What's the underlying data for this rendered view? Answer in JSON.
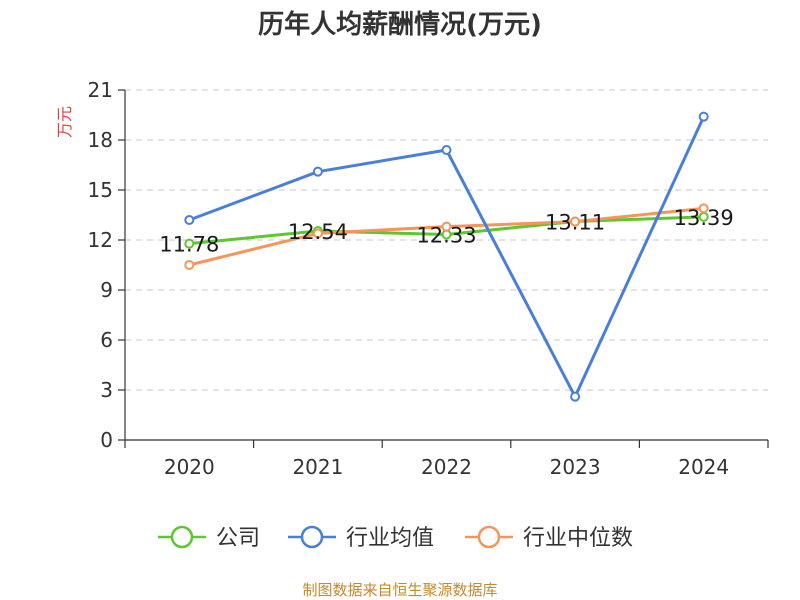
{
  "chart_data": {
    "type": "line",
    "title": "历年人均薪酬情况(万元)",
    "ylabel": "万元",
    "xlabel": "",
    "categories": [
      "2020",
      "2021",
      "2022",
      "2023",
      "2024"
    ],
    "ylim": [
      0,
      21
    ],
    "yticks": [
      0,
      3,
      6,
      9,
      12,
      15,
      18,
      21
    ],
    "grid": true,
    "legend_position": "bottom",
    "series": [
      {
        "name": "公司",
        "color": "#5cc72e",
        "values": [
          11.78,
          12.54,
          12.33,
          13.11,
          13.39
        ],
        "labels": [
          "11.78",
          "12.54",
          "12.33",
          "13.11",
          "13.39"
        ]
      },
      {
        "name": "行业均值",
        "color": "#4a7fd8",
        "values": [
          13.2,
          16.1,
          17.4,
          2.6,
          19.4
        ]
      },
      {
        "name": "行业中位数",
        "color": "#f5955a",
        "values": [
          10.5,
          12.4,
          12.8,
          13.1,
          13.9
        ]
      }
    ],
    "unit_color": "#e04040",
    "source": "制图数据来自恒生聚源数据库",
    "source_color": "#c58a2a"
  }
}
